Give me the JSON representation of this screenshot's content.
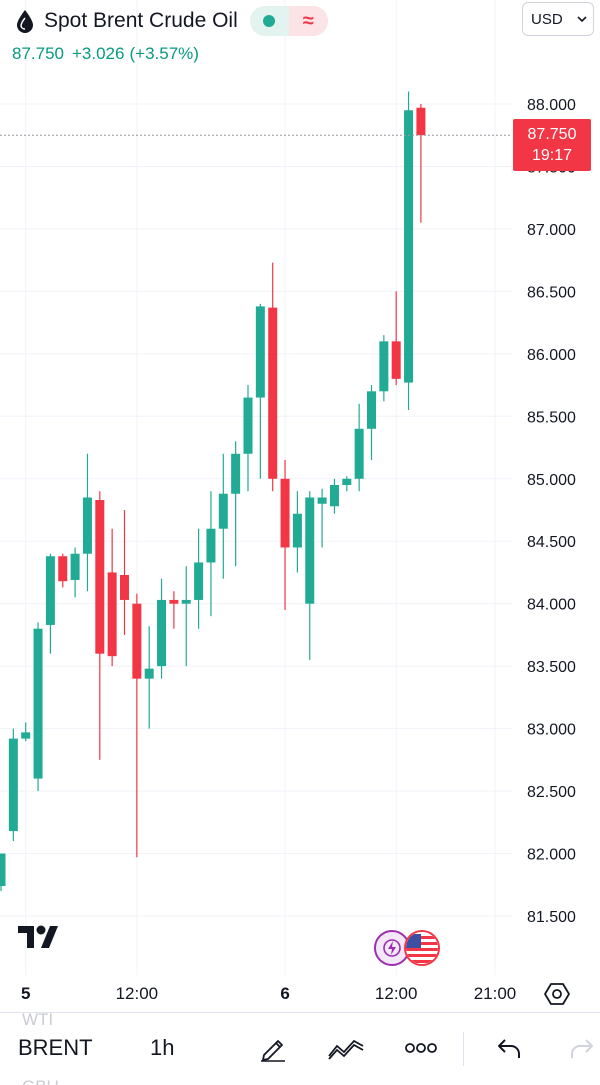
{
  "header": {
    "symbol_name": "Spot Brent Crude Oil",
    "icon": "drop-icon",
    "market_status_icon": "market-open-dot-icon",
    "data_delay_icon": "approx-icon",
    "data_delay_symbol": "≈",
    "currency": "USD",
    "last_price": "87.750",
    "change": "+3.026",
    "change_percent": "(+3.57%)",
    "colors": {
      "up": "#089981",
      "down": "#f23645",
      "candle_up": "#22ab94"
    }
  },
  "price_tag": {
    "price": "87.750",
    "countdown": "19:17"
  },
  "chart_data": {
    "type": "candlestick",
    "timeframe": "1h",
    "y_ticks": [
      "81.500",
      "82.000",
      "82.500",
      "83.000",
      "83.500",
      "84.000",
      "84.500",
      "85.000",
      "85.500",
      "86.000",
      "86.500",
      "87.000",
      "87.500",
      "88.000"
    ],
    "y_tick_values": [
      81.5,
      82.0,
      82.5,
      83.0,
      83.5,
      84.0,
      84.5,
      85.0,
      85.5,
      86.0,
      86.5,
      87.0,
      87.5,
      88.0
    ],
    "ylim": [
      81.25,
      88.5
    ],
    "x_ticks": [
      {
        "label": "5",
        "index": 2,
        "bold": true
      },
      {
        "label": "12:00",
        "index": 11,
        "bold": false
      },
      {
        "label": "6",
        "index": 23,
        "bold": true
      },
      {
        "label": "12:00",
        "index": 32,
        "bold": false
      },
      {
        "label": "21:00",
        "index": 40,
        "bold": false
      }
    ],
    "last_price_line": 87.75,
    "grid": true,
    "candles": [
      {
        "o": 81.74,
        "h": 82.0,
        "l": 81.7,
        "c": 82.0
      },
      {
        "o": 82.18,
        "h": 83.0,
        "l": 82.1,
        "c": 82.92
      },
      {
        "o": 82.92,
        "h": 83.05,
        "l": 82.9,
        "c": 82.97
      },
      {
        "o": 82.6,
        "h": 83.85,
        "l": 82.5,
        "c": 83.8
      },
      {
        "o": 83.83,
        "h": 84.4,
        "l": 83.6,
        "c": 84.38
      },
      {
        "o": 84.38,
        "h": 84.4,
        "l": 84.13,
        "c": 84.18
      },
      {
        "o": 84.19,
        "h": 84.45,
        "l": 84.05,
        "c": 84.4
      },
      {
        "o": 84.4,
        "h": 85.2,
        "l": 84.1,
        "c": 84.85
      },
      {
        "o": 84.83,
        "h": 84.9,
        "l": 82.75,
        "c": 83.6
      },
      {
        "o": 84.25,
        "h": 84.6,
        "l": 83.5,
        "c": 83.58
      },
      {
        "o": 84.23,
        "h": 84.75,
        "l": 83.75,
        "c": 84.03
      },
      {
        "o": 84.0,
        "h": 84.08,
        "l": 81.97,
        "c": 83.4
      },
      {
        "o": 83.4,
        "h": 83.82,
        "l": 83.0,
        "c": 83.48
      },
      {
        "o": 83.5,
        "h": 84.2,
        "l": 83.4,
        "c": 84.03
      },
      {
        "o": 84.03,
        "h": 84.1,
        "l": 83.8,
        "c": 84.0
      },
      {
        "o": 84.0,
        "h": 84.3,
        "l": 83.5,
        "c": 84.03
      },
      {
        "o": 84.03,
        "h": 84.6,
        "l": 83.8,
        "c": 84.33
      },
      {
        "o": 84.33,
        "h": 84.9,
        "l": 83.9,
        "c": 84.6
      },
      {
        "o": 84.6,
        "h": 85.2,
        "l": 84.2,
        "c": 84.88
      },
      {
        "o": 84.88,
        "h": 85.3,
        "l": 84.3,
        "c": 85.2
      },
      {
        "o": 85.2,
        "h": 85.75,
        "l": 84.9,
        "c": 85.65
      },
      {
        "o": 85.65,
        "h": 86.4,
        "l": 85.0,
        "c": 86.38
      },
      {
        "o": 86.37,
        "h": 86.73,
        "l": 84.9,
        "c": 85.0
      },
      {
        "o": 85.0,
        "h": 85.15,
        "l": 83.95,
        "c": 84.45
      },
      {
        "o": 84.45,
        "h": 84.9,
        "l": 84.25,
        "c": 84.72
      },
      {
        "o": 84.0,
        "h": 84.9,
        "l": 83.55,
        "c": 84.85
      },
      {
        "o": 84.8,
        "h": 84.92,
        "l": 84.45,
        "c": 84.85
      },
      {
        "o": 84.78,
        "h": 85.0,
        "l": 84.72,
        "c": 84.95
      },
      {
        "o": 84.95,
        "h": 85.02,
        "l": 84.9,
        "c": 85.0
      },
      {
        "o": 85.0,
        "h": 85.6,
        "l": 84.9,
        "c": 85.4
      },
      {
        "o": 85.4,
        "h": 85.75,
        "l": 85.15,
        "c": 85.7
      },
      {
        "o": 85.7,
        "h": 86.15,
        "l": 85.62,
        "c": 86.1
      },
      {
        "o": 86.1,
        "h": 86.5,
        "l": 85.75,
        "c": 85.8
      },
      {
        "o": 85.77,
        "h": 88.1,
        "l": 85.55,
        "c": 87.95
      },
      {
        "o": 87.97,
        "h": 88.0,
        "l": 87.05,
        "c": 87.75
      }
    ]
  },
  "logos": {
    "tradingview": "tradingview-logo",
    "flash_badge": "flash-icon",
    "flag_badge": "us-flag-icon"
  },
  "toolbar": {
    "ghost_top": "WTI",
    "ghost_bottom": "GBU",
    "symbol": "BRENT",
    "interval": "1h",
    "draw_icon": "pencil-icon",
    "indicators_icon": "indicators-icon",
    "more_icon": "more-icon",
    "undo_icon": "undo-icon",
    "redo_icon": "redo-icon",
    "settings_icon": "settings-icon"
  }
}
